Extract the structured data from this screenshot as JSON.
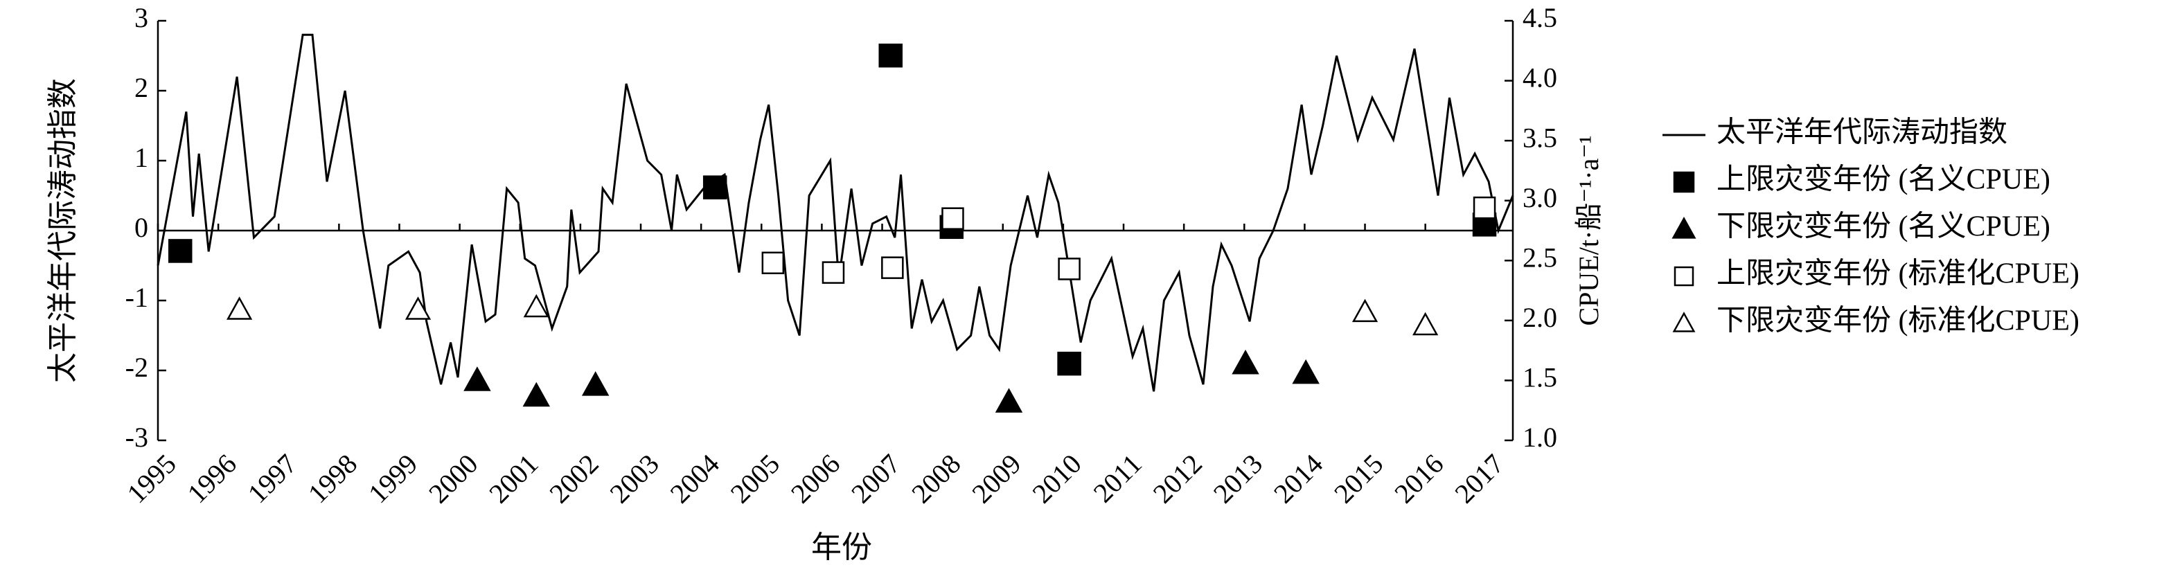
{
  "chart_data": {
    "type": "line",
    "xlabel": "年份",
    "ylabel": "太平洋年代际涛动指数",
    "y2label": "CPUE/t·船⁻¹·a⁻¹",
    "xlim": [
      1995,
      2017.45
    ],
    "xticks": [
      1995,
      1996,
      1997,
      1998,
      1999,
      2000,
      2001,
      2002,
      2003,
      2004,
      2005,
      2006,
      2007,
      2008,
      2009,
      2010,
      2011,
      2012,
      2013,
      2014,
      2015,
      2016,
      2017
    ],
    "ylim": [
      -3,
      3
    ],
    "yticks": [
      -3,
      -2,
      -1,
      0,
      1,
      2,
      3
    ],
    "y2lim": [
      1.0,
      4.5
    ],
    "y2ticks": [
      {
        "value": 1.0,
        "label": "1.0"
      },
      1.5,
      {
        "value": 2.0,
        "label": "2.0"
      },
      2.5,
      {
        "value": 3.0,
        "label": "3.0"
      },
      3.5,
      {
        "value": 4.0,
        "label": "4.0"
      },
      4.5
    ],
    "series": [
      {
        "name": "太平洋年代际涛动指数",
        "type": "line",
        "color": "#000000",
        "x": [
          1995.0,
          1995.47,
          1995.58,
          1995.68,
          1995.84,
          1996.31,
          1996.59,
          1996.93,
          1997.4,
          1997.56,
          1997.8,
          1998.1,
          1998.4,
          1998.68,
          1998.82,
          1999.15,
          1999.34,
          1999.45,
          1999.69,
          1999.85,
          1999.97,
          2000.2,
          2000.43,
          2000.59,
          2000.78,
          2000.97,
          2001.08,
          2001.25,
          2001.53,
          2001.78,
          2001.85,
          2001.99,
          2002.3,
          2002.37,
          2002.53,
          2002.76,
          2003.11,
          2003.34,
          2003.51,
          2003.6,
          2003.76,
          2004.04,
          2004.39,
          2004.63,
          2004.79,
          2004.98,
          2005.12,
          2005.28,
          2005.44,
          2005.63,
          2005.79,
          2006.14,
          2006.28,
          2006.49,
          2006.66,
          2006.84,
          2007.07,
          2007.21,
          2007.31,
          2007.49,
          2007.66,
          2007.82,
          2008.01,
          2008.24,
          2008.47,
          2008.61,
          2008.78,
          2008.94,
          2009.13,
          2009.41,
          2009.57,
          2009.76,
          2009.92,
          2010.29,
          2010.45,
          2010.8,
          2011.15,
          2011.32,
          2011.5,
          2011.67,
          2011.92,
          2012.09,
          2012.32,
          2012.48,
          2012.62,
          2012.79,
          2013.09,
          2013.25,
          2013.48,
          2013.72,
          2013.95,
          2014.11,
          2014.3,
          2014.53,
          2014.88,
          2015.12,
          2015.47,
          2015.82,
          2016.21,
          2016.4,
          2016.63,
          2016.82,
          2017.05,
          2017.21,
          2017.45
        ],
        "values": [
          -0.5,
          1.7,
          0.2,
          1.1,
          -0.3,
          2.2,
          -0.1,
          0.2,
          2.8,
          2.8,
          0.7,
          2.0,
          0.0,
          -1.4,
          -0.5,
          -0.3,
          -0.6,
          -1.3,
          -2.2,
          -1.6,
          -2.1,
          -0.2,
          -1.3,
          -1.2,
          0.6,
          0.4,
          -0.4,
          -0.5,
          -1.4,
          -0.8,
          0.3,
          -0.6,
          -0.3,
          0.6,
          0.4,
          2.1,
          1.0,
          0.8,
          0.0,
          0.8,
          0.3,
          0.6,
          0.8,
          -0.6,
          0.4,
          1.3,
          1.8,
          0.5,
          -1.0,
          -1.5,
          0.5,
          1.0,
          -0.7,
          0.6,
          -0.5,
          0.1,
          0.2,
          -0.1,
          0.8,
          -1.4,
          -0.7,
          -1.3,
          -1.0,
          -1.7,
          -1.5,
          -0.8,
          -1.5,
          -1.7,
          -0.5,
          0.5,
          -0.1,
          0.8,
          0.4,
          -1.6,
          -1.0,
          -0.4,
          -1.8,
          -1.4,
          -2.3,
          -1.0,
          -0.6,
          -1.5,
          -2.2,
          -0.8,
          -0.2,
          -0.5,
          -1.3,
          -0.4,
          0.0,
          0.6,
          1.8,
          0.8,
          1.5,
          2.5,
          1.3,
          1.9,
          1.3,
          2.6,
          0.5,
          1.9,
          0.8,
          1.1,
          0.7,
          0.0,
          0.5
        ]
      },
      {
        "name": "上限灾变年份 (名义CPUE)",
        "type": "scatter",
        "axis": "y2",
        "marker": "square",
        "filled": true,
        "color": "#000000",
        "x": [
          1995.37,
          2004.23,
          2007.14,
          2008.15,
          2010.1,
          2016.98
        ],
        "values": [
          2.58,
          3.11,
          4.21,
          2.78,
          1.64,
          2.8
        ]
      },
      {
        "name": "下限灾变年份 (名义CPUE)",
        "type": "scatter",
        "axis": "y2",
        "marker": "triangle",
        "filled": true,
        "color": "#000000",
        "x": [
          2000.29,
          2001.27,
          2002.25,
          2009.1,
          2013.02,
          2014.02
        ],
        "values": [
          1.5,
          1.37,
          1.46,
          1.32,
          1.64,
          1.56
        ]
      },
      {
        "name": "上限灾变年份 (标准化CPUE)",
        "type": "scatter",
        "axis": "y2",
        "marker": "square",
        "filled": false,
        "color": "#000000",
        "x": [
          2005.19,
          2006.19,
          2007.17,
          2008.17,
          2010.1,
          2016.98
        ],
        "values": [
          2.48,
          2.4,
          2.44,
          2.85,
          2.43,
          2.94
        ]
      },
      {
        "name": "下限灾变年份 (标准化CPUE)",
        "type": "scatter",
        "axis": "y2",
        "marker": "triangle",
        "filled": false,
        "color": "#000000",
        "x": [
          1996.35,
          1999.31,
          2001.27,
          2015.0,
          2016.0
        ],
        "values": [
          2.09,
          2.09,
          2.11,
          2.07,
          1.96
        ]
      }
    ]
  }
}
